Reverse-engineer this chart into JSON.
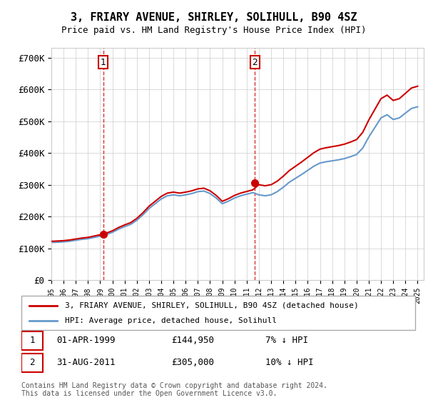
{
  "title": "3, FRIARY AVENUE, SHIRLEY, SOLIHULL, B90 4SZ",
  "subtitle": "Price paid vs. HM Land Registry's House Price Index (HPI)",
  "ylabel_ticks": [
    "£0",
    "£100K",
    "£200K",
    "£300K",
    "£400K",
    "£500K",
    "£600K",
    "£700K"
  ],
  "ytick_values": [
    0,
    100000,
    200000,
    300000,
    400000,
    500000,
    600000,
    700000
  ],
  "ylim": [
    0,
    730000
  ],
  "purchase1_date": "01-APR-1999",
  "purchase1_price": 144950,
  "purchase1_label": "1",
  "purchase1_hpi": "7% ↓ HPI",
  "purchase2_date": "31-AUG-2011",
  "purchase2_price": 305000,
  "purchase2_label": "2",
  "purchase2_hpi": "10% ↓ HPI",
  "legend_property": "3, FRIARY AVENUE, SHIRLEY, SOLIHULL, B90 4SZ (detached house)",
  "legend_hpi": "HPI: Average price, detached house, Solihull",
  "footer": "Contains HM Land Registry data © Crown copyright and database right 2024.\nThis data is licensed under the Open Government Licence v3.0.",
  "property_color": "#cc0000",
  "hpi_color": "#6699cc",
  "vline_color": "#cc0000",
  "background_color": "#ffffff",
  "grid_color": "#cccccc"
}
